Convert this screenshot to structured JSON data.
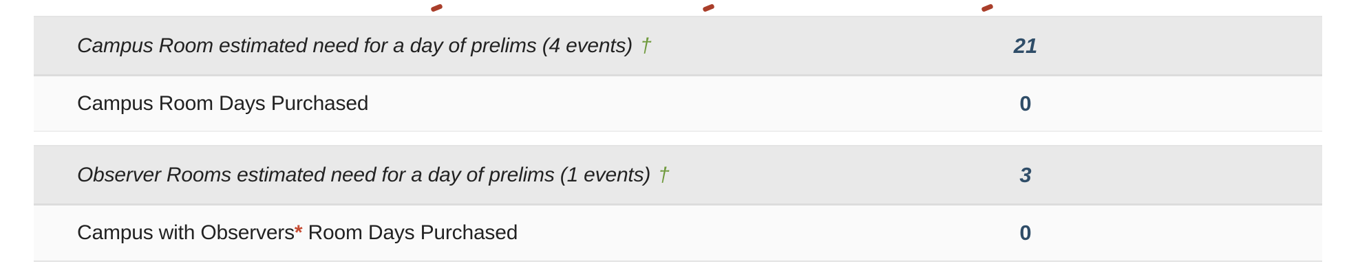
{
  "colors": {
    "page_bg": "#ffffff",
    "estimate_row_bg": "#e9e9e9",
    "purchased_row_bg": "#fafafa",
    "row_separator": "#dcdcdc",
    "label_text": "#222222",
    "value_text": "#2f4d68",
    "dagger_green": "#6f9a3d",
    "asterisk_red": "#c64b32",
    "cropped_fragment_red": "#a93e2a"
  },
  "table": {
    "rows": [
      {
        "label": "Campus Room estimated need for a day of prelims (4 events)",
        "dagger": "†",
        "value": "21"
      },
      {
        "label": "Campus Room Days Purchased",
        "value": "0"
      },
      {
        "label": "Observer Rooms estimated need for a day of prelims (1 events)",
        "dagger": "†",
        "value": "3"
      },
      {
        "label": "Campus with Observers",
        "asterisk": "*",
        "label_suffix": " Room Days Purchased",
        "value": "0"
      }
    ]
  }
}
